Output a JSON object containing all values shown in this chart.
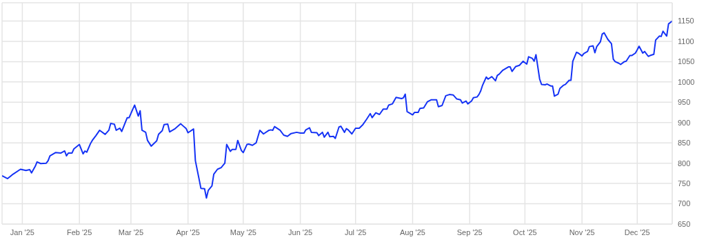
{
  "chart_data": {
    "type": "line",
    "x": [
      "2024-12-21",
      "2024-12-24",
      "2024-12-27",
      "2024-12-31",
      "2025-01-03",
      "2025-01-05",
      "2025-01-06",
      "2025-01-08",
      "2025-01-09",
      "2025-01-11",
      "2025-01-14",
      "2025-01-15",
      "2025-01-16",
      "2025-01-19",
      "2025-01-22",
      "2025-01-24",
      "2025-01-25",
      "2025-01-26",
      "2025-01-28",
      "2025-01-29",
      "2025-02-01",
      "2025-02-03",
      "2025-02-04",
      "2025-02-05",
      "2025-02-07",
      "2025-02-08",
      "2025-02-10",
      "2025-02-12",
      "2025-02-15",
      "2025-02-17",
      "2025-02-18",
      "2025-02-20",
      "2025-02-21",
      "2025-02-23",
      "2025-02-24",
      "2025-02-26",
      "2025-02-27",
      "2025-02-28",
      "2025-03-02",
      "2025-03-03",
      "2025-03-05",
      "2025-03-06",
      "2025-03-07",
      "2025-03-09",
      "2025-03-10",
      "2025-03-12",
      "2025-03-15",
      "2025-03-16",
      "2025-03-18",
      "2025-03-19",
      "2025-03-21",
      "2025-03-22",
      "2025-03-25",
      "2025-03-28",
      "2025-03-29",
      "2025-03-31",
      "2025-04-01",
      "2025-04-04",
      "2025-04-05",
      "2025-04-07",
      "2025-04-08",
      "2025-04-10",
      "2025-04-11",
      "2025-04-12",
      "2025-04-14",
      "2025-04-15",
      "2025-04-17",
      "2025-04-19",
      "2025-04-21",
      "2025-04-22",
      "2025-04-24",
      "2025-04-25",
      "2025-04-27",
      "2025-04-28",
      "2025-04-30",
      "2025-05-01",
      "2025-05-03",
      "2025-05-04",
      "2025-05-06",
      "2025-05-08",
      "2025-05-10",
      "2025-05-12",
      "2025-05-15",
      "2025-05-16",
      "2025-05-17",
      "2025-05-18",
      "2025-05-21",
      "2025-05-23",
      "2025-05-25",
      "2025-05-27",
      "2025-05-30",
      "2025-06-01",
      "2025-06-03",
      "2025-06-04",
      "2025-06-06",
      "2025-06-07",
      "2025-06-10",
      "2025-06-11",
      "2025-06-13",
      "2025-06-14",
      "2025-06-16",
      "2025-06-17",
      "2025-06-19",
      "2025-06-20",
      "2025-06-22",
      "2025-06-23",
      "2025-06-25",
      "2025-06-26",
      "2025-06-27",
      "2025-06-29",
      "2025-07-01",
      "2025-07-03",
      "2025-07-05",
      "2025-07-07",
      "2025-07-09",
      "2025-07-10",
      "2025-07-12",
      "2025-07-14",
      "2025-07-16",
      "2025-07-18",
      "2025-07-19",
      "2025-07-21",
      "2025-07-23",
      "2025-07-26",
      "2025-07-27",
      "2025-07-28",
      "2025-07-29",
      "2025-08-01",
      "2025-08-02",
      "2025-08-04",
      "2025-08-05",
      "2025-08-07",
      "2025-08-09",
      "2025-08-11",
      "2025-08-14",
      "2025-08-15",
      "2025-08-17",
      "2025-08-19",
      "2025-08-21",
      "2025-08-23",
      "2025-08-25",
      "2025-08-27",
      "2025-08-28",
      "2025-08-30",
      "2025-08-31",
      "2025-09-02",
      "2025-09-03",
      "2025-09-05",
      "2025-09-06",
      "2025-09-07",
      "2025-09-08",
      "2025-09-10",
      "2025-09-11",
      "2025-09-13",
      "2025-09-15",
      "2025-09-16",
      "2025-09-17",
      "2025-09-19",
      "2025-09-22",
      "2025-09-23",
      "2025-09-24",
      "2025-09-26",
      "2025-09-28",
      "2025-09-30",
      "2025-10-02",
      "2025-10-03",
      "2025-10-05",
      "2025-10-06",
      "2025-10-07",
      "2025-10-09",
      "2025-10-10",
      "2025-10-12",
      "2025-10-13",
      "2025-10-15",
      "2025-10-16",
      "2025-10-17",
      "2025-10-19",
      "2025-10-20",
      "2025-10-22",
      "2025-10-23",
      "2025-10-25",
      "2025-10-26",
      "2025-10-27",
      "2025-10-29",
      "2025-10-30",
      "2025-11-01",
      "2025-11-02",
      "2025-11-04",
      "2025-11-05",
      "2025-11-07",
      "2025-11-08",
      "2025-11-09",
      "2025-11-11",
      "2025-11-12",
      "2025-11-13",
      "2025-11-15",
      "2025-11-17",
      "2025-11-18",
      "2025-11-19",
      "2025-11-21",
      "2025-11-22",
      "2025-11-24",
      "2025-11-25",
      "2025-11-27",
      "2025-11-28",
      "2025-11-30",
      "2025-12-01",
      "2025-12-02",
      "2025-12-04",
      "2025-12-05",
      "2025-12-07",
      "2025-12-08",
      "2025-12-10",
      "2025-12-11",
      "2025-12-13",
      "2025-12-14",
      "2025-12-15",
      "2025-12-17",
      "2025-12-18",
      "2025-12-20"
    ],
    "series": [
      {
        "color": "#1432f5",
        "values": [
          769,
          762,
          773,
          785,
          782,
          784,
          776,
          792,
          803,
          799,
          800,
          806,
          818,
          826,
          825,
          830,
          818,
          825,
          825,
          835,
          846,
          823,
          830,
          827,
          848,
          856,
          868,
          881,
          871,
          881,
          898,
          896,
          881,
          886,
          878,
          901,
          912,
          912,
          933,
          943,
          916,
          929,
          881,
          876,
          856,
          842,
          855,
          871,
          880,
          895,
          896,
          877,
          885,
          897,
          893,
          885,
          875,
          884,
          806,
          761,
          738,
          737,
          714,
          733,
          744,
          773,
          785,
          789,
          800,
          846,
          829,
          834,
          834,
          856,
          831,
          826,
          846,
          847,
          844,
          850,
          881,
          872,
          881,
          882,
          881,
          890,
          881,
          869,
          866,
          873,
          876,
          874,
          874,
          882,
          887,
          876,
          875,
          868,
          876,
          864,
          876,
          865,
          866,
          861,
          889,
          891,
          876,
          885,
          882,
          872,
          886,
          886,
          895,
          908,
          922,
          912,
          924,
          920,
          933,
          933,
          943,
          946,
          962,
          959,
          961,
          970,
          927,
          919,
          925,
          925,
          935,
          936,
          951,
          956,
          956,
          939,
          942,
          966,
          969,
          968,
          958,
          956,
          948,
          953,
          946,
          953,
          961,
          963,
          969,
          978,
          992,
          1012,
          1007,
          1013,
          1003,
          1016,
          1019,
          1029,
          1037,
          1037,
          1026,
          1038,
          1041,
          1051,
          1044,
          1062,
          1058,
          1051,
          1067,
          1007,
          994,
          993,
          995,
          990,
          990,
          965,
          970,
          984,
          992,
          994,
          1004,
          1004,
          1051,
          1073,
          1071,
          1064,
          1070,
          1075,
          1087,
          1089,
          1072,
          1087,
          1099,
          1118,
          1121,
          1105,
          1094,
          1056,
          1050,
          1046,
          1043,
          1050,
          1051,
          1065,
          1065,
          1071,
          1079,
          1088,
          1071,
          1075,
          1063,
          1065,
          1068,
          1103,
          1113,
          1112,
          1125,
          1113,
          1143,
          1150
        ]
      }
    ],
    "xlim": [
      "2024-12-21",
      "2025-12-20"
    ],
    "xticks": [
      {
        "value": "2025-01-01",
        "label": "Jan '25"
      },
      {
        "value": "2025-02-01",
        "label": "Feb '25"
      },
      {
        "value": "2025-03-01",
        "label": "Mar '25"
      },
      {
        "value": "2025-04-01",
        "label": "Apr '25"
      },
      {
        "value": "2025-05-01",
        "label": "May '25"
      },
      {
        "value": "2025-06-01",
        "label": "Jun '25"
      },
      {
        "value": "2025-07-01",
        "label": "Jul '25"
      },
      {
        "value": "2025-08-01",
        "label": "Aug '25"
      },
      {
        "value": "2025-09-01",
        "label": "Sep '25"
      },
      {
        "value": "2025-10-01",
        "label": "Oct '25"
      },
      {
        "value": "2025-11-01",
        "label": "Nov '25"
      },
      {
        "value": "2025-12-01",
        "label": "Dec '25"
      }
    ],
    "ylim": [
      650,
      1195
    ],
    "yticks": [
      650,
      700,
      750,
      800,
      850,
      900,
      950,
      1000,
      1050,
      1100,
      1150
    ],
    "grid": true,
    "marker": "none",
    "line_style": "solid"
  }
}
